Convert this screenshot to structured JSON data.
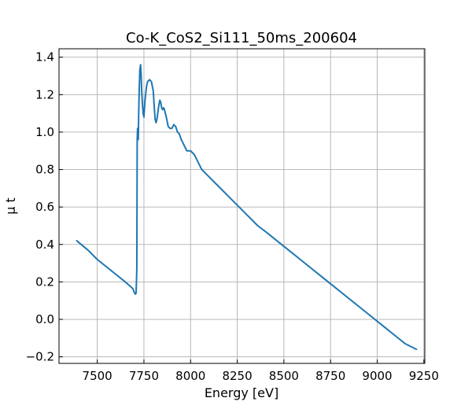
{
  "chart_data": {
    "type": "line",
    "title": "Co-K_CoS2_Si111_50ms_200604",
    "xlabel": "Energy [eV]",
    "ylabel": "μ t",
    "xlim": [
      7295,
      9255
    ],
    "ylim": [
      -0.235,
      1.445
    ],
    "grid": true,
    "x_ticks": [
      7500,
      7750,
      8000,
      8250,
      8500,
      8750,
      9000,
      9250
    ],
    "x_tick_labels": [
      "7500",
      "7750",
      "8000",
      "8250",
      "8500",
      "8750",
      "9000",
      "9250"
    ],
    "y_ticks": [
      -0.2,
      0.0,
      0.2,
      0.4,
      0.6,
      0.8,
      1.0,
      1.2,
      1.4
    ],
    "y_tick_labels": [
      "−0.2",
      "0.0",
      "0.2",
      "0.4",
      "0.6",
      "0.8",
      "1.0",
      "1.2",
      "1.4"
    ],
    "series": [
      {
        "color": "#1f77b4",
        "x": [
          7390,
          7450,
          7500,
          7550,
          7600,
          7650,
          7690,
          7700,
          7705,
          7708,
          7710,
          7712,
          7714,
          7716,
          7718,
          7720,
          7722,
          7725,
          7728,
          7732,
          7735,
          7738,
          7742,
          7746,
          7750,
          7755,
          7760,
          7765,
          7770,
          7780,
          7790,
          7800,
          7805,
          7810,
          7815,
          7820,
          7828,
          7835,
          7840,
          7845,
          7850,
          7855,
          7860,
          7870,
          7880,
          7890,
          7900,
          7910,
          7920,
          7930,
          7940,
          7950,
          7960,
          7970,
          7980,
          7990,
          8000,
          8020,
          8040,
          8060,
          8080,
          8100,
          8120,
          8140,
          8160,
          8180,
          8200,
          8220,
          8240,
          8260,
          8280,
          8300,
          8330,
          8360,
          8400,
          8450,
          8500,
          8550,
          8600,
          8650,
          8700,
          8750,
          8800,
          8850,
          8900,
          8950,
          9000,
          9050,
          9100,
          9150,
          9210
        ],
        "y": [
          0.42,
          0.37,
          0.32,
          0.28,
          0.24,
          0.2,
          0.165,
          0.14,
          0.135,
          0.14,
          0.2,
          0.27,
          0.96,
          1.02,
          1.0,
          0.96,
          1.1,
          1.23,
          1.33,
          1.36,
          1.31,
          1.22,
          1.15,
          1.1,
          1.08,
          1.16,
          1.21,
          1.25,
          1.27,
          1.28,
          1.27,
          1.22,
          1.14,
          1.07,
          1.05,
          1.07,
          1.13,
          1.17,
          1.16,
          1.13,
          1.12,
          1.13,
          1.12,
          1.08,
          1.03,
          1.02,
          1.02,
          1.04,
          1.03,
          1.0,
          0.99,
          0.96,
          0.94,
          0.92,
          0.9,
          0.9,
          0.9,
          0.88,
          0.84,
          0.8,
          0.78,
          0.76,
          0.74,
          0.72,
          0.7,
          0.68,
          0.66,
          0.64,
          0.62,
          0.6,
          0.58,
          0.56,
          0.53,
          0.5,
          0.47,
          0.43,
          0.39,
          0.35,
          0.31,
          0.27,
          0.23,
          0.19,
          0.15,
          0.11,
          0.07,
          0.03,
          -0.01,
          -0.05,
          -0.09,
          -0.13,
          -0.16
        ]
      }
    ]
  }
}
